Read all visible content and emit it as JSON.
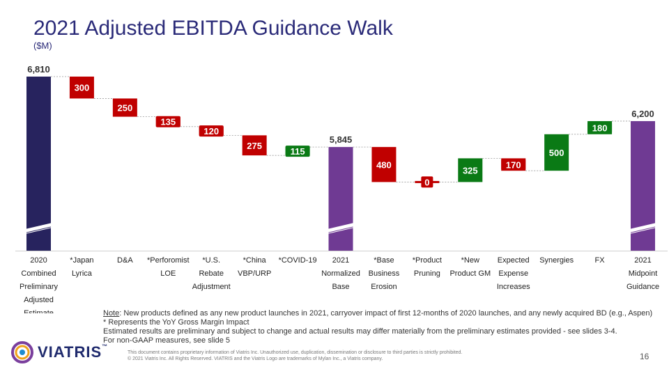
{
  "title": "2021 Adjusted EBITDA Guidance Walk",
  "subtitle": "($M)",
  "chart_data": {
    "type": "bar",
    "subtype": "waterfall",
    "categories": [
      [
        "2020",
        "Combined",
        "Preliminary",
        "Adjusted",
        "Estimate"
      ],
      [
        "*Japan",
        "Lyrica"
      ],
      [
        "D&A"
      ],
      [
        "*Perforomist",
        "LOE"
      ],
      [
        "*U.S.",
        "Rebate",
        "Adjustment"
      ],
      [
        "*China",
        "VBP/URP"
      ],
      [
        "*COVID-19"
      ],
      [
        "2021",
        "Normalized",
        "Base"
      ],
      [
        "*Base",
        "Business",
        "Erosion"
      ],
      [
        "*Product",
        "Pruning"
      ],
      [
        "*New",
        "Product GM"
      ],
      [
        "Expected",
        "Expense",
        "Increases"
      ],
      [
        "Synergies"
      ],
      [
        "FX"
      ],
      [
        "2021",
        "Midpoint",
        "Guidance"
      ]
    ],
    "steps": [
      {
        "label": "6,810",
        "value": 6810,
        "kind": "total",
        "color": "#27235e"
      },
      {
        "label": "300",
        "value": -300,
        "kind": "delta",
        "color": "#c00000"
      },
      {
        "label": "250",
        "value": -250,
        "kind": "delta",
        "color": "#c00000"
      },
      {
        "label": "135",
        "value": -135,
        "kind": "delta",
        "color": "#c00000"
      },
      {
        "label": "120",
        "value": -120,
        "kind": "delta",
        "color": "#c00000"
      },
      {
        "label": "275",
        "value": -275,
        "kind": "delta",
        "color": "#c00000"
      },
      {
        "label": "115",
        "value": 115,
        "kind": "delta",
        "color": "#0a7a15"
      },
      {
        "label": "5,845",
        "value": 5845,
        "kind": "total",
        "color": "#6f3a93"
      },
      {
        "label": "480",
        "value": -480,
        "kind": "delta",
        "color": "#c00000"
      },
      {
        "label": "0",
        "value": 0,
        "kind": "delta",
        "color": "#c00000"
      },
      {
        "label": "325",
        "value": 325,
        "kind": "delta",
        "color": "#0a7a15"
      },
      {
        "label": "170",
        "value": -170,
        "kind": "delta",
        "color": "#c00000"
      },
      {
        "label": "500",
        "value": 500,
        "kind": "delta",
        "color": "#0a7a15"
      },
      {
        "label": "180",
        "value": 180,
        "kind": "delta",
        "color": "#0a7a15"
      },
      {
        "label": "6,200",
        "value": 6200,
        "kind": "total",
        "color": "#6f3a93"
      }
    ],
    "axis_break": true,
    "grid": false
  },
  "notes": {
    "note_label": "Note",
    "note_text": ":  New products defined as any new product launches in 2021, carryover impact of first 12-months of 2020 launches, and any newly acquired BD (e.g., Aspen)",
    "line2": "* Represents the YoY Gross Margin Impact",
    "line3": "Estimated results are preliminary and subject to change and actual results may differ materially from the preliminary estimates provided - see slides 3-4.",
    "line4": "For non-GAAP measures, see slide 5"
  },
  "footer": {
    "line1": "This document contains proprietary information of Viatris Inc. Unauthorized use, duplication, dissemination or disclosure to third parties is strictly prohibited.",
    "line2": "© 2021 Viatris Inc. All Rights Reserved. VIATRIS and the Viatris Logo are trademarks of Mylan Inc., a Viatris company."
  },
  "page_number": "16",
  "logo": {
    "text": "VIATRIS",
    "tm": "™"
  }
}
